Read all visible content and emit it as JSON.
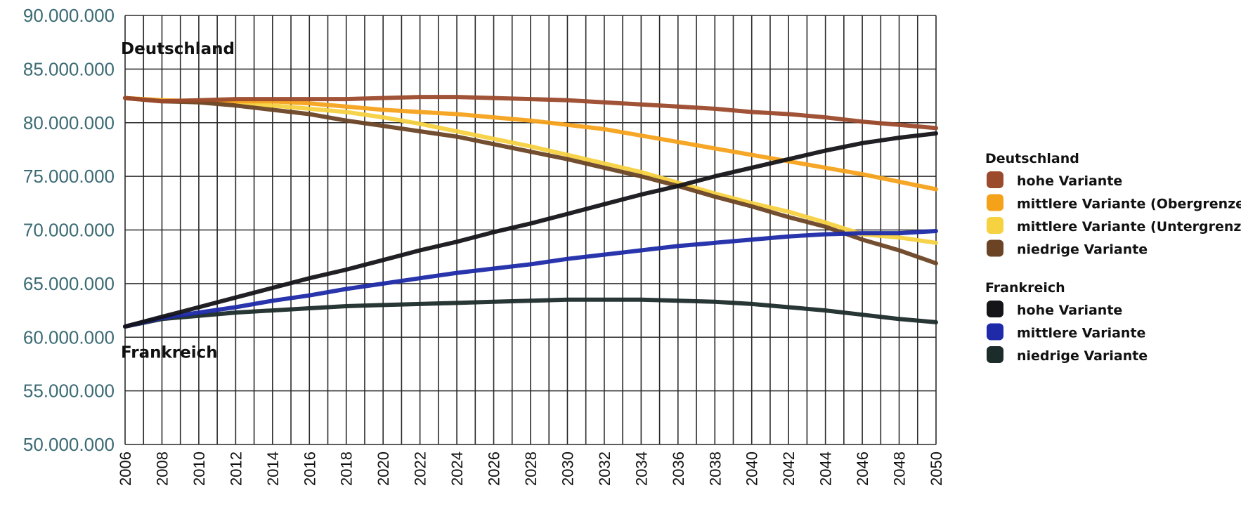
{
  "chart_data": {
    "type": "line",
    "title": "",
    "xlabel": "",
    "ylabel": "",
    "xlim": [
      2006,
      2050
    ],
    "ylim": [
      50000000,
      90000000
    ],
    "grid": true,
    "x_ticks": [
      2006,
      2008,
      2010,
      2012,
      2014,
      2016,
      2018,
      2020,
      2022,
      2024,
      2026,
      2028,
      2030,
      2032,
      2034,
      2036,
      2038,
      2040,
      2042,
      2044,
      2046,
      2048,
      2050
    ],
    "x_tick_labels": [
      "2006",
      "2008",
      "2010",
      "2012",
      "2014",
      "2016",
      "2018",
      "2020",
      "2022",
      "2024",
      "2026",
      "2028",
      "2030",
      "2032",
      "2034",
      "2036",
      "2038",
      "2040",
      "2042",
      "2044",
      "2046",
      "2048",
      "2050"
    ],
    "y_ticks": [
      50000000,
      55000000,
      60000000,
      65000000,
      70000000,
      75000000,
      80000000,
      85000000,
      90000000
    ],
    "y_tick_labels": [
      "50.000.000",
      "55.000.000",
      "60.000.000",
      "65.000.000",
      "70.000.000",
      "75.000.000",
      "80.000.000",
      "85.000.000",
      "90.000.000"
    ],
    "annotations": [
      {
        "text": "Deutschland",
        "x": 2006,
        "y": 86400000
      },
      {
        "text": "Frankreich",
        "x": 2006,
        "y": 58100000
      }
    ],
    "legend_placement": "right",
    "legend_groups": [
      {
        "title": "Deutschland",
        "items": [
          {
            "label": "hohe Variante",
            "color": "#9c4a2c"
          },
          {
            "label": "mittlere Variante (Obergrenze)",
            "color": "#f5a21b"
          },
          {
            "label": "mittlere Variante (Untergrenze)",
            "color": "#f6d140"
          },
          {
            "label": "niedrige Variante",
            "color": "#6b4426"
          }
        ]
      },
      {
        "title": "Frankreich",
        "items": [
          {
            "label": "hohe Variante",
            "color": "#141419"
          },
          {
            "label": "mittlere Variante",
            "color": "#1e2aa8"
          },
          {
            "label": "niedrige Variante",
            "color": "#1c2c2a"
          }
        ]
      }
    ],
    "x": [
      2006,
      2008,
      2010,
      2012,
      2014,
      2016,
      2018,
      2020,
      2022,
      2024,
      2026,
      2028,
      2030,
      2032,
      2034,
      2036,
      2038,
      2040,
      2042,
      2044,
      2046,
      2048,
      2050
    ],
    "series": [
      {
        "name": "Deutschland – mittlere Variante (Untergrenze)",
        "color": "#f6d140",
        "values": [
          82300000,
          82100000,
          81900000,
          81800000,
          81600000,
          81300000,
          81000000,
          80500000,
          79900000,
          79200000,
          78500000,
          77800000,
          77000000,
          76200000,
          75400000,
          74400000,
          73400000,
          72500000,
          71700000,
          70700000,
          69600000,
          69300000,
          68800000
        ]
      },
      {
        "name": "Deutschland – mittlere Variante (Obergrenze)",
        "color": "#f5a21b",
        "values": [
          82300000,
          82100000,
          82000000,
          82000000,
          82000000,
          81800000,
          81500000,
          81200000,
          81000000,
          80800000,
          80500000,
          80200000,
          79800000,
          79400000,
          78800000,
          78200000,
          77600000,
          77000000,
          76400000,
          75800000,
          75200000,
          74500000,
          73800000
        ]
      },
      {
        "name": "Deutschland – niedrige Variante",
        "color": "#6b4426",
        "values": [
          82300000,
          82000000,
          81900000,
          81600000,
          81200000,
          80800000,
          80200000,
          79700000,
          79200000,
          78700000,
          78000000,
          77300000,
          76600000,
          75800000,
          75000000,
          74100000,
          73100000,
          72200000,
          71200000,
          70300000,
          69100000,
          68100000,
          66900000
        ]
      },
      {
        "name": "Deutschland – hohe Variante",
        "color": "#9c4a2c",
        "values": [
          82300000,
          82000000,
          82100000,
          82200000,
          82200000,
          82200000,
          82200000,
          82300000,
          82400000,
          82400000,
          82300000,
          82200000,
          82100000,
          81900000,
          81700000,
          81500000,
          81300000,
          81000000,
          80800000,
          80500000,
          80100000,
          79800000,
          79500000
        ]
      },
      {
        "name": "Frankreich – niedrige Variante",
        "color": "#1c2c2a",
        "values": [
          61000000,
          61700000,
          62000000,
          62300000,
          62500000,
          62700000,
          62900000,
          63000000,
          63100000,
          63200000,
          63300000,
          63400000,
          63500000,
          63500000,
          63500000,
          63400000,
          63300000,
          63100000,
          62800000,
          62500000,
          62100000,
          61700000,
          61400000
        ]
      },
      {
        "name": "Frankreich – mittlere Variante",
        "color": "#1e2aa8",
        "values": [
          61000000,
          61800000,
          62300000,
          62800000,
          63400000,
          63900000,
          64500000,
          65000000,
          65500000,
          66000000,
          66400000,
          66800000,
          67300000,
          67700000,
          68100000,
          68500000,
          68800000,
          69100000,
          69400000,
          69600000,
          69700000,
          69700000,
          69900000
        ]
      },
      {
        "name": "Frankreich – hohe Variante",
        "color": "#141419",
        "values": [
          61000000,
          61900000,
          62800000,
          63700000,
          64600000,
          65500000,
          66300000,
          67200000,
          68100000,
          68900000,
          69800000,
          70600000,
          71500000,
          72400000,
          73300000,
          74100000,
          75000000,
          75800000,
          76600000,
          77400000,
          78100000,
          78600000,
          79000000
        ]
      }
    ]
  }
}
